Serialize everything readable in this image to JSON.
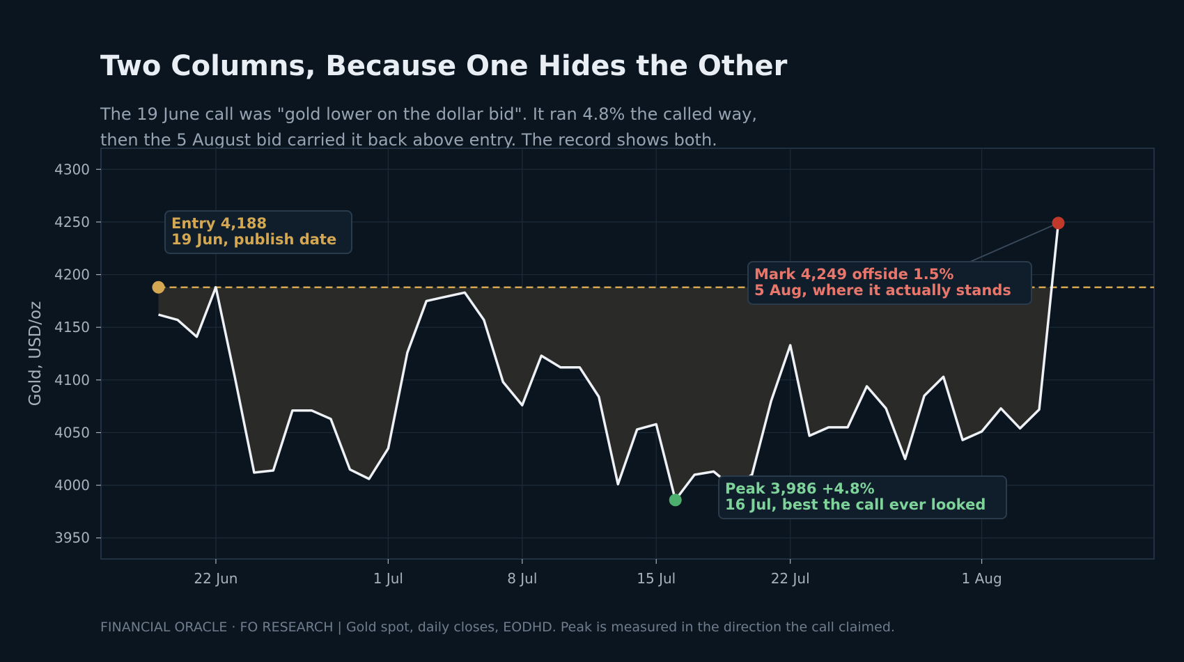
{
  "header": {
    "title": "Two Columns, Because One Hides the Other",
    "subtitle_line1": "The 19 June call was \"gold lower on the dollar bid\". It ran 4.8% the called way,",
    "subtitle_line2": "then the 5 August bid carried it back above entry. The record shows both."
  },
  "footer": {
    "text": "FINANCIAL ORACLE · FO RESEARCH  |  Gold spot, daily closes, EODHD. Peak is measured in the direction the call claimed."
  },
  "colors": {
    "background": "#0b1520",
    "line": "#eef1f5",
    "fill": "#2a2a28",
    "entry": "#d4a853",
    "peak": "#4caf6e",
    "peak_text": "#7ed39a",
    "mark": "#c0392b",
    "mark_text": "#e8766a",
    "grid": "#1d2b38",
    "box_bg": "#101e2c",
    "box_border": "#2a3b4c"
  },
  "chart_data": {
    "type": "line",
    "ylabel": "Gold, USD/oz",
    "xlabel": "",
    "ylim": [
      3930,
      4320
    ],
    "y_ticks": [
      3950,
      4000,
      4050,
      4100,
      4150,
      4200,
      4250,
      4300
    ],
    "xlim": [
      "2025-06-16",
      "2025-08-10"
    ],
    "x_ticks": [
      {
        "date": "2025-06-22",
        "label": "22 Jun"
      },
      {
        "date": "2025-07-01",
        "label": "1 Jul"
      },
      {
        "date": "2025-07-08",
        "label": "8 Jul"
      },
      {
        "date": "2025-07-15",
        "label": "15 Jul"
      },
      {
        "date": "2025-07-22",
        "label": "22 Jul"
      },
      {
        "date": "2025-08-01",
        "label": "1 Aug"
      }
    ],
    "grid": true,
    "entry_level": 4188,
    "series": [
      {
        "x": [
          "2025-06-19",
          "2025-06-20",
          "2025-06-21",
          "2025-06-22",
          "2025-06-23",
          "2025-06-24",
          "2025-06-25",
          "2025-06-26",
          "2025-06-27",
          "2025-06-28",
          "2025-06-29",
          "2025-06-30",
          "2025-07-01",
          "2025-07-02",
          "2025-07-03",
          "2025-07-04",
          "2025-07-05",
          "2025-07-06",
          "2025-07-07",
          "2025-07-08",
          "2025-07-09",
          "2025-07-10",
          "2025-07-11",
          "2025-07-12",
          "2025-07-13",
          "2025-07-14",
          "2025-07-15",
          "2025-07-16",
          "2025-07-17",
          "2025-07-18",
          "2025-07-19",
          "2025-07-20",
          "2025-07-21",
          "2025-07-22",
          "2025-07-23",
          "2025-07-24",
          "2025-07-25",
          "2025-07-26",
          "2025-07-27",
          "2025-07-28",
          "2025-07-29",
          "2025-07-30",
          "2025-07-31",
          "2025-08-01",
          "2025-08-02",
          "2025-08-03",
          "2025-08-04",
          "2025-08-05"
        ],
        "values": [
          4162,
          4157,
          4141,
          4188,
          4102,
          4012,
          4014,
          4071,
          4071,
          4063,
          4015,
          4006,
          4035,
          4126,
          4175,
          4179,
          4183,
          4157,
          4098,
          4076,
          4123,
          4112,
          4112,
          4084,
          4001,
          4053,
          4058,
          3986,
          4010,
          4013,
          3998,
          4010,
          4080,
          4133,
          4047,
          4055,
          4055,
          4094,
          4073,
          4025,
          4085,
          4103,
          4043,
          4051,
          4073,
          4054,
          4072,
          4249
        ]
      }
    ],
    "annotations": [
      {
        "id": "entry",
        "line1": "Entry  4,188",
        "line2": "19 Jun, publish date",
        "date": "2025-06-19",
        "value": 4188
      },
      {
        "id": "peak",
        "line1": "Peak  3,986    +4.8%",
        "line2": "16 Jul, best the call ever looked",
        "date": "2025-07-16",
        "value": 3986
      },
      {
        "id": "mark",
        "line1": "Mark  4,249    offside 1.5%",
        "line2": "5 Aug, where it actually stands",
        "date": "2025-08-05",
        "value": 4249
      }
    ]
  }
}
